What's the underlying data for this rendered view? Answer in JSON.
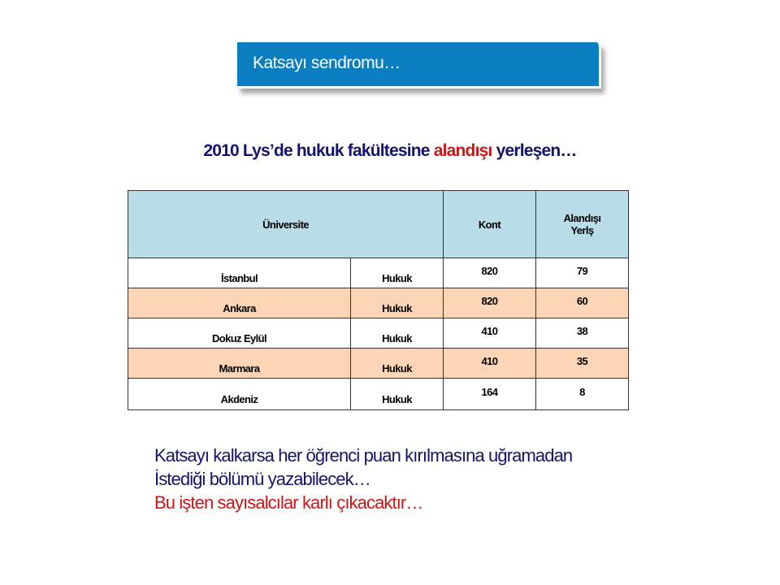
{
  "slide": {
    "title": "Katsayı sendromu…",
    "heading": {
      "part1": "2010 Lys’de hukuk fakültesine ",
      "highlight": "alandışı",
      "part2": " yerleşen…"
    },
    "table": {
      "headers": {
        "university": "Üniversite",
        "kont": "Kont",
        "alandisi_line1": "Alandışı",
        "alandisi_line2": "Yerlş"
      },
      "rows": [
        {
          "university": "İstanbul",
          "faculty": "Hukuk",
          "kont": "820",
          "alandisi": "79"
        },
        {
          "university": "Ankara",
          "faculty": "Hukuk",
          "kont": "820",
          "alandisi": "60"
        },
        {
          "university": "Dokuz Eylül",
          "faculty": "Hukuk",
          "kont": "410",
          "alandisi": "38"
        },
        {
          "university": "Marmara",
          "faculty": "Hukuk",
          "kont": "410",
          "alandisi": "35"
        },
        {
          "university": "Akdeniz",
          "faculty": "Hukuk",
          "kont": "164",
          "alandisi": "8"
        }
      ]
    },
    "body": {
      "line1": "Katsayı kalkarsa her öğrenci puan kırılmasına uğramadan",
      "line2": "İstediği bölümü yazabilecek…",
      "line3": "Bu işten sayısalcılar karlı çıkacaktır…"
    },
    "colors": {
      "title_bg": "#0b7ec2",
      "navy": "#14146e",
      "red": "#d41414",
      "header_bg": "#b8dce8",
      "alt_row": "#fbd5b5"
    }
  }
}
